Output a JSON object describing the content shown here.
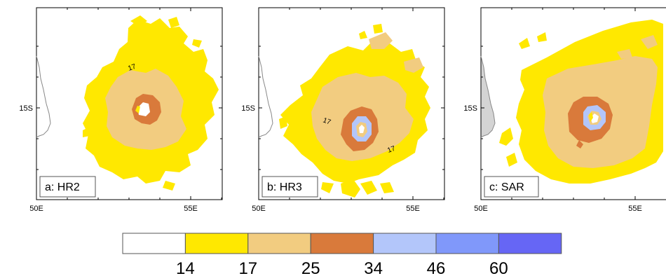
{
  "panels": [
    {
      "id": "hr2",
      "label": "a: HR2",
      "lat_label": "15S",
      "x_tick_labels": [
        "50E",
        "55E"
      ],
      "contour_labels": [
        "17"
      ]
    },
    {
      "id": "hr3",
      "label": "b: HR3",
      "lat_label": "15S",
      "x_tick_labels": [
        "50E",
        "55E"
      ],
      "contour_labels": [
        "17",
        "17"
      ]
    },
    {
      "id": "sar",
      "label": "c: SAR",
      "lat_label": "15S",
      "x_tick_labels": [
        "50E",
        "55E"
      ],
      "contour_labels": []
    }
  ],
  "colorbar": {
    "levels": [
      "14",
      "17",
      "25",
      "34",
      "46",
      "60"
    ],
    "colors": [
      "#ffffff",
      "#ffe800",
      "#f2cc80",
      "#d97a3b",
      "#b3c6fa",
      "#8098fa",
      "#6666f5"
    ]
  },
  "map_colors": {
    "land_fill_sar": "#d4d4d4",
    "coastline": "#888888"
  }
}
